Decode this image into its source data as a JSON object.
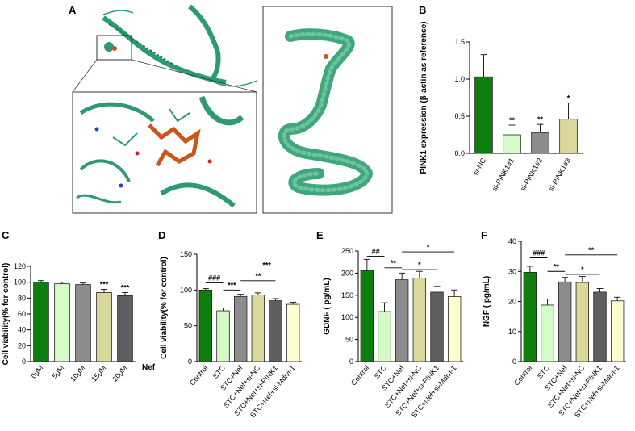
{
  "panel_letters": [
    "A",
    "B",
    "C",
    "D",
    "E",
    "F"
  ],
  "colors": {
    "dark_green": "#0e7f0e",
    "light_green": "#d4fbc6",
    "gray": "#8c8c8c",
    "khaki": "#d9d89a",
    "dark_gray": "#5f5f5f",
    "pale_yellow": "#fcfdd0",
    "protein": "#2e9a72",
    "protein_dark": "#1f7a55",
    "ligand": "#c8571a"
  },
  "panel_a": {
    "description_icon": "protein-structure-images"
  },
  "chart_data": [
    {
      "panel": "B",
      "type": "bar",
      "categories": [
        "si-NC",
        "si-PINK1#1",
        "si-PINK1#2",
        "si-PINK1#3"
      ],
      "values": [
        1.03,
        0.25,
        0.28,
        0.46
      ],
      "errors": [
        0.3,
        0.13,
        0.11,
        0.22
      ],
      "bar_colors": [
        "dark_green",
        "light_green",
        "gray",
        "khaki"
      ],
      "significance": [
        "",
        "**",
        "**",
        "*"
      ],
      "ylabel": "PINK1 expression (β-actin as reference)",
      "ylim": [
        0,
        1.5
      ],
      "yticks": [
        "0.0",
        "0.5",
        "1.0",
        "1.5"
      ],
      "xlabel_extra": "",
      "brackets": []
    },
    {
      "panel": "C",
      "type": "bar",
      "categories": [
        "0μM",
        "5μM",
        "10μM",
        "15μM",
        "20μM"
      ],
      "values": [
        100,
        98,
        97,
        87,
        83
      ],
      "errors": [
        2,
        2,
        2,
        4,
        4
      ],
      "bar_colors": [
        "dark_green",
        "light_green",
        "gray",
        "khaki",
        "dark_gray"
      ],
      "significance": [
        "",
        "",
        "",
        "***",
        "***"
      ],
      "ylabel": "Cell viability(% for control)",
      "ylim": [
        0,
        120
      ],
      "yticks": [
        "0",
        "20",
        "40",
        "60",
        "80",
        "100",
        "120"
      ],
      "xlabel_extra": "Nef",
      "brackets": []
    },
    {
      "panel": "D",
      "type": "bar",
      "categories": [
        "Control",
        "STC",
        "STC+Nef",
        "STC+Nef+si-NC",
        "STC+Nef+si-PINK1",
        "STC+Nef+si-Mdivi-1"
      ],
      "values": [
        100,
        71,
        91,
        93,
        85,
        80
      ],
      "errors": [
        2,
        4,
        3,
        3,
        3,
        3
      ],
      "bar_colors": [
        "dark_green",
        "light_green",
        "gray",
        "khaki",
        "dark_gray",
        "pale_yellow"
      ],
      "significance": [
        "",
        "",
        "",
        "",
        "",
        ""
      ],
      "ylabel": "Cell viability(% for control)",
      "ylim": [
        0,
        150
      ],
      "yticks": [
        "0",
        "50",
        "100",
        "150"
      ],
      "xlabel_extra": "",
      "brackets": [
        {
          "from": 0,
          "to": 1,
          "y": 110,
          "label": "###"
        },
        {
          "from": 1,
          "to": 2,
          "y": 100,
          "label": "***"
        },
        {
          "from": 2,
          "to": 4,
          "y": 113,
          "label": "**"
        },
        {
          "from": 2,
          "to": 5,
          "y": 128,
          "label": "***"
        }
      ]
    },
    {
      "panel": "E",
      "type": "bar",
      "categories": [
        "Control",
        "STC",
        "STC+Nef",
        "STC+Nef+si-NC",
        "STC+Nef+si-PINK1",
        "STC+Nef+si-Mdivi-1"
      ],
      "values": [
        206,
        113,
        185,
        189,
        157,
        147
      ],
      "errors": [
        25,
        20,
        15,
        15,
        13,
        15
      ],
      "bar_colors": [
        "dark_green",
        "light_green",
        "gray",
        "khaki",
        "dark_gray",
        "pale_yellow"
      ],
      "significance": [
        "",
        "",
        "",
        "",
        "",
        ""
      ],
      "ylabel": "GDNF ( pg/mL)",
      "ylim": [
        0,
        250
      ],
      "yticks": [
        "0",
        "50",
        "100",
        "150",
        "200",
        "250"
      ],
      "xlabel_extra": "",
      "brackets": [
        {
          "from": 0,
          "to": 1,
          "y": 238,
          "label": "##"
        },
        {
          "from": 1,
          "to": 2,
          "y": 212,
          "label": "**"
        },
        {
          "from": 2,
          "to": 4,
          "y": 208,
          "label": "*"
        },
        {
          "from": 2,
          "to": 5,
          "y": 248,
          "label": "*"
        }
      ]
    },
    {
      "panel": "F",
      "type": "bar",
      "categories": [
        "Control",
        "STC",
        "STC+Nef",
        "STC+Nef+si-NC",
        "STC+Nef+si-PINK1",
        "STC+Nef+si-Mdivi-1"
      ],
      "values": [
        29.7,
        18.8,
        26.5,
        26.3,
        23.1,
        20.2
      ],
      "errors": [
        2,
        2,
        1.5,
        2,
        1.2,
        1.2
      ],
      "bar_colors": [
        "dark_green",
        "light_green",
        "gray",
        "khaki",
        "dark_gray",
        "pale_yellow"
      ],
      "significance": [
        "",
        "",
        "",
        "",
        "",
        ""
      ],
      "ylabel": "NGF ( pg/mL)",
      "ylim": [
        0,
        40
      ],
      "yticks": [
        "0",
        "10",
        "20",
        "30",
        "40"
      ],
      "xlabel_extra": "",
      "brackets": [
        {
          "from": 0,
          "to": 1,
          "y": 34.5,
          "label": "###"
        },
        {
          "from": 1,
          "to": 2,
          "y": 30,
          "label": "**"
        },
        {
          "from": 2,
          "to": 4,
          "y": 29,
          "label": "*"
        },
        {
          "from": 2,
          "to": 5,
          "y": 35.5,
          "label": "**"
        }
      ]
    }
  ]
}
